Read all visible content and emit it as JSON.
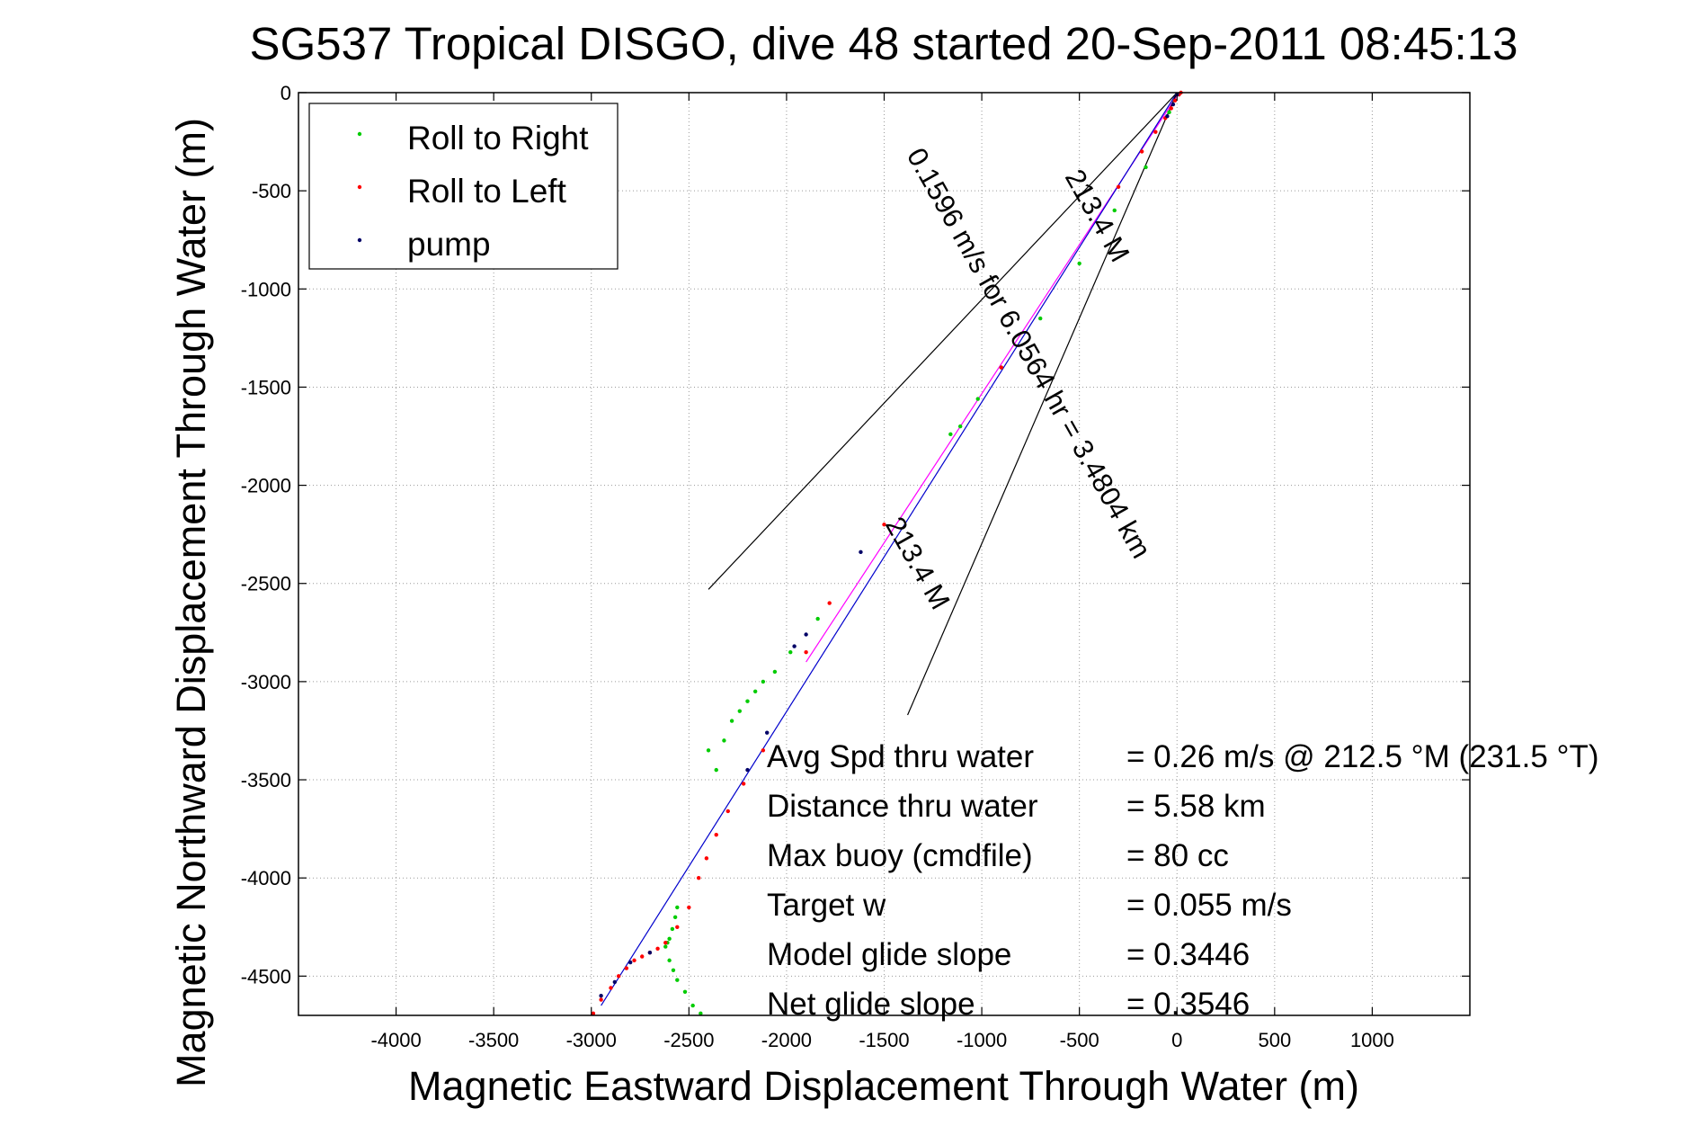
{
  "chart_data": {
    "type": "scatter",
    "title": "SG537 Tropical DISGO, dive 48 started 20-Sep-2011 08:45:13",
    "xlabel": "Magnetic Eastward Displacement Through Water (m)",
    "ylabel": "Magnetic Northward Displacement Through Water (m)",
    "xlim": [
      -4500,
      1500
    ],
    "ylim": [
      -4700,
      0
    ],
    "xticks": [
      -4000,
      -3500,
      -3000,
      -2500,
      -2000,
      -1500,
      -1000,
      -500,
      0,
      500,
      1000
    ],
    "yticks": [
      0,
      -500,
      -1000,
      -1500,
      -2000,
      -2500,
      -3000,
      -3500,
      -4000,
      -4500
    ],
    "grid": true,
    "legend_position": "top-left",
    "series": [
      {
        "name": "Roll to Right",
        "color": "#00cc00",
        "x": [
          -2560,
          -2570,
          -2585,
          -2600,
          -2610,
          -2620,
          -2600,
          -2580,
          -2560,
          -2520,
          -2480,
          -2440,
          -2400,
          -2360,
          -2320,
          -2280,
          -2240,
          -2200,
          -2160,
          -2120,
          -2060,
          -1980,
          -1840,
          -1160,
          -1110,
          -1020,
          -900,
          -700,
          -500,
          -320,
          -160,
          -40
        ],
        "y": [
          -4150,
          -4200,
          -4260,
          -4310,
          -4330,
          -4350,
          -4420,
          -4470,
          -4520,
          -4580,
          -4650,
          -4690,
          -3350,
          -3450,
          -3300,
          -3200,
          -3150,
          -3100,
          -3050,
          -3000,
          -2950,
          -2850,
          -2680,
          -1740,
          -1700,
          -1560,
          -1400,
          -1150,
          -870,
          -600,
          -380,
          -100
        ]
      },
      {
        "name": "Roll to Left",
        "color": "#ff0000",
        "x": [
          -2990,
          -2950,
          -2900,
          -2860,
          -2820,
          -2780,
          -2740,
          -2700,
          -2660,
          -2620,
          -2560,
          -2500,
          -2450,
          -2410,
          -2360,
          -2300,
          -2220,
          -2120,
          -1900,
          -1780,
          -1500,
          -900,
          -300,
          -180,
          -110,
          -60,
          -30,
          -10,
          10,
          20
        ],
        "y": [
          -4690,
          -4620,
          -4560,
          -4500,
          -4460,
          -4420,
          -4400,
          -4380,
          -4360,
          -4330,
          -4250,
          -4150,
          -4000,
          -3900,
          -3780,
          -3660,
          -3520,
          -3350,
          -2850,
          -2600,
          -2200,
          -1400,
          -480,
          -300,
          -200,
          -130,
          -80,
          -40,
          -10,
          0
        ]
      },
      {
        "name": "pump",
        "color": "#000066",
        "x": [
          -2950,
          -2880,
          -2800,
          -2700,
          -2200,
          -2100,
          -1960,
          -1900,
          -1620,
          -50,
          -20,
          0
        ],
        "y": [
          -4600,
          -4530,
          -4430,
          -4380,
          -3450,
          -3260,
          -2820,
          -2760,
          -2340,
          -120,
          -60,
          -10
        ]
      }
    ],
    "lines": [
      {
        "name": "",
        "color": "#ff00ff",
        "x": [
          -1900,
          10
        ],
        "y": [
          -2900,
          0
        ]
      },
      {
        "name": "",
        "color": "#0000cc",
        "x": [
          -2950,
          0
        ],
        "y": [
          -4650,
          0
        ]
      },
      {
        "name": "",
        "color": "#000000",
        "x": [
          0,
          -2400
        ],
        "y": [
          0,
          -2530
        ]
      },
      {
        "name": "",
        "color": "#000000",
        "x": [
          0,
          -1380
        ],
        "y": [
          0,
          -3170
        ]
      }
    ],
    "annotations": [
      {
        "text": "0.1596 m/s for 6.0564 hr = 3.4804 km",
        "x": -800,
        "y": -1350,
        "angle": 60.5
      },
      {
        "text": "213.4 M",
        "x": -1370,
        "y": -2420,
        "angle": 60.5
      },
      {
        "text": "213.4 M",
        "x": -450,
        "y": -650,
        "angle": 60.5
      }
    ],
    "summary": [
      {
        "label": "Avg Spd thru water",
        "value": "=  0.26 m/s @ 212.5 °M (231.5 °T)"
      },
      {
        "label": "Distance thru water",
        "value": "=  5.58 km"
      },
      {
        "label": "Max buoy (cmdfile)",
        "value": "= 80 cc"
      },
      {
        "label": "Target w",
        "value": "= 0.055 m/s"
      },
      {
        "label": "Model glide slope",
        "value": "= 0.3446"
      },
      {
        "label": "Net glide slope",
        "value": "= 0.3546"
      }
    ]
  }
}
